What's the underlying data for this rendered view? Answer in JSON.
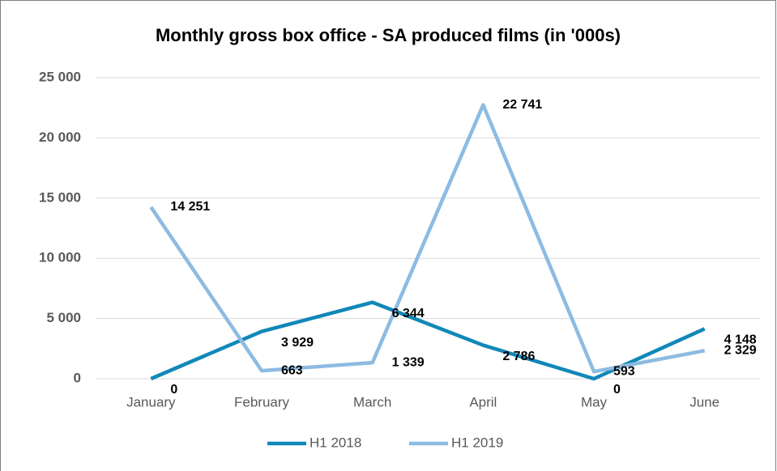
{
  "chart_data": {
    "type": "line",
    "title": "Monthly gross box office - SA produced films (in '000s)",
    "categories": [
      "January",
      "February",
      "March",
      "April",
      "May",
      "June"
    ],
    "series": [
      {
        "name": "H1 2018",
        "color": "#1088b8",
        "values": [
          0,
          3929,
          6344,
          2786,
          0,
          4148
        ],
        "value_labels": [
          "0",
          "3 929",
          "6 344",
          "2 786",
          "0",
          "4 148"
        ]
      },
      {
        "name": "H1 2019",
        "color": "#8dbbe2",
        "values": [
          14251,
          663,
          1339,
          22741,
          593,
          2329
        ],
        "value_labels": [
          "14 251",
          "663",
          "1 339",
          "22 741",
          "593",
          "2 329"
        ]
      }
    ],
    "ylim": [
      0,
      25000
    ],
    "yticks": [
      {
        "value": 0,
        "label": "0"
      },
      {
        "value": 5000,
        "label": "5 000"
      },
      {
        "value": 10000,
        "label": "10 000"
      },
      {
        "value": 15000,
        "label": "15 000"
      },
      {
        "value": 20000,
        "label": "20 000"
      },
      {
        "value": 25000,
        "label": "25 000"
      }
    ],
    "grid": true,
    "legend": "bottom"
  }
}
